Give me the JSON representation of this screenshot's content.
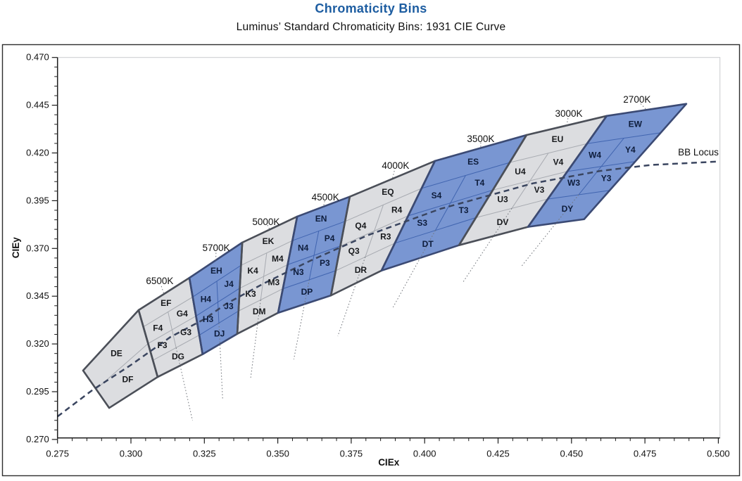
{
  "title": "Chromaticity Bins",
  "subtitle": "Luminus’ Standard Chromaticity Bins: 1931 CIE Curve",
  "colors": {
    "title_blue": "#1d5da1",
    "bin_gray_fill": "#dcdde0",
    "bin_gray_line": "#a8abb1",
    "bin_gray_text": "#17191c",
    "bin_blue_fill": "#7996d2",
    "bin_blue_line": "#4165b0",
    "bin_blue_text": "#0e1d3c",
    "outline_gray": "#4b4f58",
    "outline_blue": "#3b4a74",
    "locus": "#3a455f",
    "dotted": "#72767c",
    "axis": "#1c1c1c",
    "frame": "#c9cbce",
    "border": "#2e2e2e"
  },
  "chart_data": {
    "type": "other",
    "subtype": "chromaticity_bin_map",
    "title": "Chromaticity Bins",
    "subtitle": "Luminus’ Standard Chromaticity Bins: 1931 CIE Curve",
    "axes": {
      "x": {
        "label": "CIEx",
        "min": 0.275,
        "max": 0.5,
        "major": 0.025,
        "minor": 0.005,
        "ticks": [
          "0.275",
          "0.300",
          "0.325",
          "0.350",
          "0.375",
          "0.400",
          "0.425",
          "0.450",
          "0.475",
          "0.500"
        ]
      },
      "y": {
        "label": "CIEy",
        "min": 0.27,
        "max": 0.47,
        "major": 0.025,
        "minor": 0.005,
        "ticks": [
          "0.470",
          "0.445",
          "0.420",
          "0.395",
          "0.370",
          "0.345",
          "0.320",
          "0.295",
          "0.270"
        ]
      }
    },
    "boundaries": [
      {
        "top": [
          0.2837,
          0.3061
        ],
        "bottom": [
          0.2926,
          0.2865
        ]
      },
      {
        "top": [
          0.3026,
          0.3377
        ],
        "bottom": [
          0.3091,
          0.3027
        ]
      },
      {
        "top": [
          0.3199,
          0.3546
        ],
        "bottom": [
          0.3244,
          0.3146
        ]
      },
      {
        "top": [
          0.3379,
          0.3731
        ],
        "bottom": [
          0.3362,
          0.3253
        ]
      },
      {
        "top": [
          0.3566,
          0.3867
        ],
        "bottom": [
          0.3501,
          0.3363
        ]
      },
      {
        "top": [
          0.3745,
          0.3971
        ],
        "bottom": [
          0.3681,
          0.3454
        ]
      },
      {
        "top": [
          0.4035,
          0.4158
        ],
        "bottom": [
          0.3853,
          0.3584
        ]
      },
      {
        "top": [
          0.4347,
          0.4294
        ],
        "bottom": [
          0.4117,
          0.3717
        ]
      },
      {
        "top": [
          0.462,
          0.4394
        ],
        "bottom": [
          0.4352,
          0.3813
        ]
      },
      {
        "top": [
          0.4891,
          0.4457
        ],
        "bottom": [
          0.4543,
          0.3853
        ]
      }
    ],
    "groups": [
      {
        "cct": null,
        "tone": "gray",
        "b": [
          0,
          1
        ],
        "rows": [
          [
            "DE"
          ],
          [
            "DF"
          ]
        ],
        "label_pos": null
      },
      {
        "cct": "6500K",
        "tone": "gray",
        "b": [
          1,
          2
        ],
        "rows": [
          [
            "EF"
          ],
          [
            "F4",
            "G4"
          ],
          [
            "F3",
            "G3"
          ],
          [
            "DG"
          ]
        ],
        "label_pos": [
          0.3098,
          0.3528
        ]
      },
      {
        "cct": "5700K",
        "tone": "blue",
        "b": [
          2,
          3
        ],
        "rows": [
          [
            "EH"
          ],
          [
            "H4",
            "J4"
          ],
          [
            "H3",
            "J3"
          ],
          [
            "DJ"
          ]
        ],
        "label_pos": [
          0.329,
          0.3701
        ]
      },
      {
        "cct": "5000K",
        "tone": "gray",
        "b": [
          3,
          4
        ],
        "rows": [
          [
            "EK"
          ],
          [
            "K4",
            "M4"
          ],
          [
            "K3",
            "M3"
          ],
          [
            "DM"
          ]
        ],
        "label_pos": [
          0.346,
          0.3837
        ]
      },
      {
        "cct": "4500K",
        "tone": "blue",
        "b": [
          4,
          5
        ],
        "rows": [
          [
            "EN"
          ],
          [
            "N4",
            "P4"
          ],
          [
            "N3",
            "P3"
          ],
          [
            "DP"
          ]
        ],
        "label_pos": [
          0.3662,
          0.3966
        ]
      },
      {
        "cct": "4000K",
        "tone": "gray",
        "b": [
          5,
          6
        ],
        "rows": [
          [
            "EQ"
          ],
          [
            "Q4",
            "R4"
          ],
          [
            "Q3",
            "R3"
          ],
          [
            "DR"
          ]
        ],
        "label_pos": [
          0.3901,
          0.4132
        ]
      },
      {
        "cct": "3500K",
        "tone": "blue",
        "b": [
          6,
          7
        ],
        "rows": [
          [
            "ES"
          ],
          [
            "S4",
            "T4"
          ],
          [
            "S3",
            "T3"
          ],
          [
            "DT"
          ]
        ],
        "label_pos": [
          0.4191,
          0.4272
        ]
      },
      {
        "cct": "3000K",
        "tone": "gray",
        "b": [
          7,
          8
        ],
        "rows": [
          [
            "EU"
          ],
          [
            "U4",
            "V4"
          ],
          [
            "U3",
            "V3"
          ],
          [
            "DV"
          ]
        ],
        "label_pos": [
          0.4491,
          0.4405
        ]
      },
      {
        "cct": "2700K",
        "tone": "blue",
        "b": [
          8,
          9
        ],
        "rows": [
          [
            "EW"
          ],
          [
            "W4",
            "Y4"
          ],
          [
            "W3",
            "Y3"
          ],
          [
            "DY"
          ]
        ],
        "label_pos": [
          0.4723,
          0.4478
        ]
      }
    ],
    "bb_locus": {
      "label": "BB Locus",
      "label_pos": [
        0.4932,
        0.4202
      ],
      "points": [
        [
          0.275,
          0.282
        ],
        [
          0.287,
          0.296
        ],
        [
          0.3,
          0.309
        ],
        [
          0.3135,
          0.3237
        ],
        [
          0.325,
          0.333
        ],
        [
          0.3324,
          0.341
        ],
        [
          0.3451,
          0.3516
        ],
        [
          0.3611,
          0.3636
        ],
        [
          0.3805,
          0.3768
        ],
        [
          0.4053,
          0.3907
        ],
        [
          0.4369,
          0.4041
        ],
        [
          0.4599,
          0.4106
        ],
        [
          0.477,
          0.4137
        ],
        [
          0.5,
          0.4155
        ]
      ]
    }
  }
}
